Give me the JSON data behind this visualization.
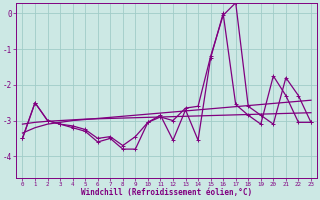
{
  "background_color": "#cce8e4",
  "grid_color": "#a0ccc8",
  "line_color": "#800080",
  "xlabel": "Windchill (Refroidissement éolien,°C)",
  "xlim": [
    -0.5,
    23.5
  ],
  "ylim": [
    -4.6,
    0.3
  ],
  "yticks": [
    0,
    -1,
    -2,
    -3,
    -4
  ],
  "xticks": [
    0,
    1,
    2,
    3,
    4,
    5,
    6,
    7,
    8,
    9,
    10,
    11,
    12,
    13,
    14,
    15,
    16,
    17,
    18,
    19,
    20,
    21,
    22,
    23
  ],
  "s1": [
    -3.5,
    -2.5,
    -3.0,
    -3.1,
    -3.15,
    -3.25,
    -3.5,
    -3.45,
    -3.7,
    -3.45,
    -3.05,
    -2.9,
    -3.0,
    -2.65,
    -2.6,
    -1.2,
    -0.05,
    0.3,
    -2.6,
    -2.85,
    -3.1,
    -1.8,
    -2.3,
    -3.05
  ],
  "s2": [
    -3.5,
    -2.5,
    -3.0,
    -3.1,
    -3.2,
    -3.3,
    -3.6,
    -3.5,
    -3.8,
    -3.8,
    -3.05,
    -2.85,
    -3.55,
    -2.7,
    -3.55,
    -1.25,
    0.0,
    -2.55,
    -2.85,
    -3.1,
    -1.75,
    -2.3,
    -3.05,
    -3.05
  ],
  "trend1": [
    -3.35,
    -3.2,
    -3.1,
    -3.05,
    -3.0,
    -2.97,
    -2.94,
    -2.91,
    -2.88,
    -2.85,
    -2.82,
    -2.79,
    -2.76,
    -2.73,
    -2.7,
    -2.67,
    -2.64,
    -2.61,
    -2.58,
    -2.55,
    -2.52,
    -2.49,
    -2.46,
    -2.43
  ],
  "trend2": [
    -3.1,
    -3.05,
    -3.02,
    -3.0,
    -2.98,
    -2.96,
    -2.95,
    -2.94,
    -2.93,
    -2.92,
    -2.91,
    -2.9,
    -2.89,
    -2.88,
    -2.87,
    -2.86,
    -2.85,
    -2.84,
    -2.83,
    -2.82,
    -2.81,
    -2.8,
    -2.79,
    -2.78
  ]
}
